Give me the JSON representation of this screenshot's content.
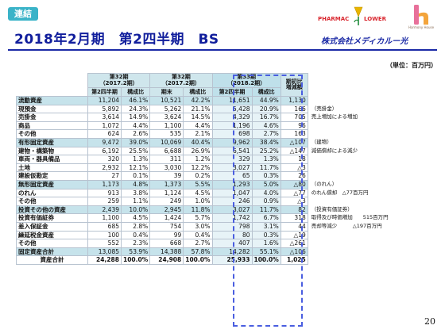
{
  "header": {
    "tag": "連結",
    "title": "2018年2月期　第2四半期　BS",
    "unit": "（単位：百万円）",
    "company": "株式会社メディカルー光",
    "logo_pharmac": "PHARMAC",
    "logo_lower": "LOWER",
    "logo_hh": "Harmony House"
  },
  "table": {
    "col_groups": [
      {
        "line1": "第32期",
        "line2": "（2017.2期）"
      },
      {
        "line1": "第32期",
        "line2": "（2017.2期）"
      },
      {
        "line1": "第33期",
        "line2": "（2018.2期）"
      }
    ],
    "change_header": {
      "line1": "期初比",
      "line2": "増減額"
    },
    "sub_headers": [
      "第2四半期",
      "構成比",
      "期末",
      "構成比",
      "第2四半期",
      "構成比"
    ],
    "rows": [
      {
        "label": "流動資産",
        "cat": true,
        "v": [
          "11,204",
          "46.1%",
          "10,521",
          "42.2%",
          "11,651",
          "44.9%",
          "1,130"
        ],
        "note": ""
      },
      {
        "label": "現預金",
        "cat": false,
        "v": [
          "5,892",
          "24.3%",
          "5,262",
          "21.1%",
          "5,428",
          "20.9%",
          "166"
        ],
        "note": "（売掛金）"
      },
      {
        "label": "売掛金",
        "cat": false,
        "v": [
          "3,614",
          "14.9%",
          "3,624",
          "14.5%",
          "4,329",
          "16.7%",
          "705"
        ],
        "note": "売上増加による増加"
      },
      {
        "label": "商品",
        "cat": false,
        "v": [
          "1,072",
          "4.4%",
          "1,100",
          "4.4%",
          "1,196",
          "4.6%",
          "96"
        ],
        "note": ""
      },
      {
        "label": "その他",
        "cat": false,
        "v": [
          "624",
          "2.6%",
          "535",
          "2.1%",
          "698",
          "2.7%",
          "163"
        ],
        "note": ""
      },
      {
        "label": "有形固定資産",
        "cat": true,
        "v": [
          "9,472",
          "39.0%",
          "10,069",
          "40.4%",
          "9,962",
          "38.4%",
          "△107"
        ],
        "note": "（建物）"
      },
      {
        "label": "建物・構築物",
        "cat": false,
        "v": [
          "6,192",
          "25.5%",
          "6,688",
          "26.9%",
          "6,541",
          "25.2%",
          "△147"
        ],
        "note": "減価償却による減少"
      },
      {
        "label": "車両・器具備品",
        "cat": false,
        "v": [
          "320",
          "1.3%",
          "311",
          "1.2%",
          "329",
          "1.3%",
          "18"
        ],
        "note": ""
      },
      {
        "label": "土地",
        "cat": false,
        "v": [
          "2,932",
          "12.1%",
          "3,030",
          "12.2%",
          "3,027",
          "11.7%",
          "△3"
        ],
        "note": ""
      },
      {
        "label": "建設仮勘定",
        "cat": false,
        "v": [
          "27",
          "0.1%",
          "39",
          "0.2%",
          "65",
          "0.3%",
          "26"
        ],
        "note": ""
      },
      {
        "label": "無形固定資産",
        "cat": true,
        "v": [
          "1,173",
          "4.8%",
          "1,373",
          "5.5%",
          "1,293",
          "5.0%",
          "△80"
        ],
        "note": "（のれん）"
      },
      {
        "label": "のれん",
        "cat": false,
        "v": [
          "913",
          "3.8%",
          "1,124",
          "4.5%",
          "1,047",
          "4.0%",
          "△77"
        ],
        "note": "のれん償却　△77百万円"
      },
      {
        "label": "その他",
        "cat": false,
        "v": [
          "259",
          "1.1%",
          "249",
          "1.0%",
          "246",
          "0.9%",
          "△3"
        ],
        "note": ""
      },
      {
        "label": "投資その他の資産",
        "cat": true,
        "v": [
          "2,439",
          "10.0%",
          "2,945",
          "11.8%",
          "3,027",
          "11.7%",
          "82"
        ],
        "note": "（投資有価証券）"
      },
      {
        "label": "投資有価証券",
        "cat": false,
        "v": [
          "1,100",
          "4.5%",
          "1,424",
          "5.7%",
          "1,742",
          "6.7%",
          "318"
        ],
        "note": "取得及び時価増加　　515百万円"
      },
      {
        "label": "差入保証金",
        "cat": false,
        "v": [
          "685",
          "2.8%",
          "754",
          "3.0%",
          "798",
          "3.1%",
          "44"
        ],
        "note": "売却等減少　　　△197百万円"
      },
      {
        "label": "繰延税金資産",
        "cat": false,
        "v": [
          "100",
          "0.4%",
          "99",
          "0.4%",
          "80",
          "0.3%",
          "△19"
        ],
        "note": ""
      },
      {
        "label": "その他",
        "cat": false,
        "v": [
          "552",
          "2.3%",
          "668",
          "2.7%",
          "407",
          "1.6%",
          "△261"
        ],
        "note": ""
      },
      {
        "label": "固定資産合計",
        "cat": true,
        "v": [
          "13,085",
          "53.9%",
          "14,388",
          "57.8%",
          "14,282",
          "55.1%",
          "△106"
        ],
        "note": ""
      },
      {
        "label": "資産合計",
        "cat": false,
        "total": true,
        "v": [
          "24,288",
          "100.0%",
          "24,908",
          "100.0%",
          "25,933",
          "100.0%",
          "1,025"
        ],
        "note": ""
      }
    ]
  },
  "page_number": "20"
}
